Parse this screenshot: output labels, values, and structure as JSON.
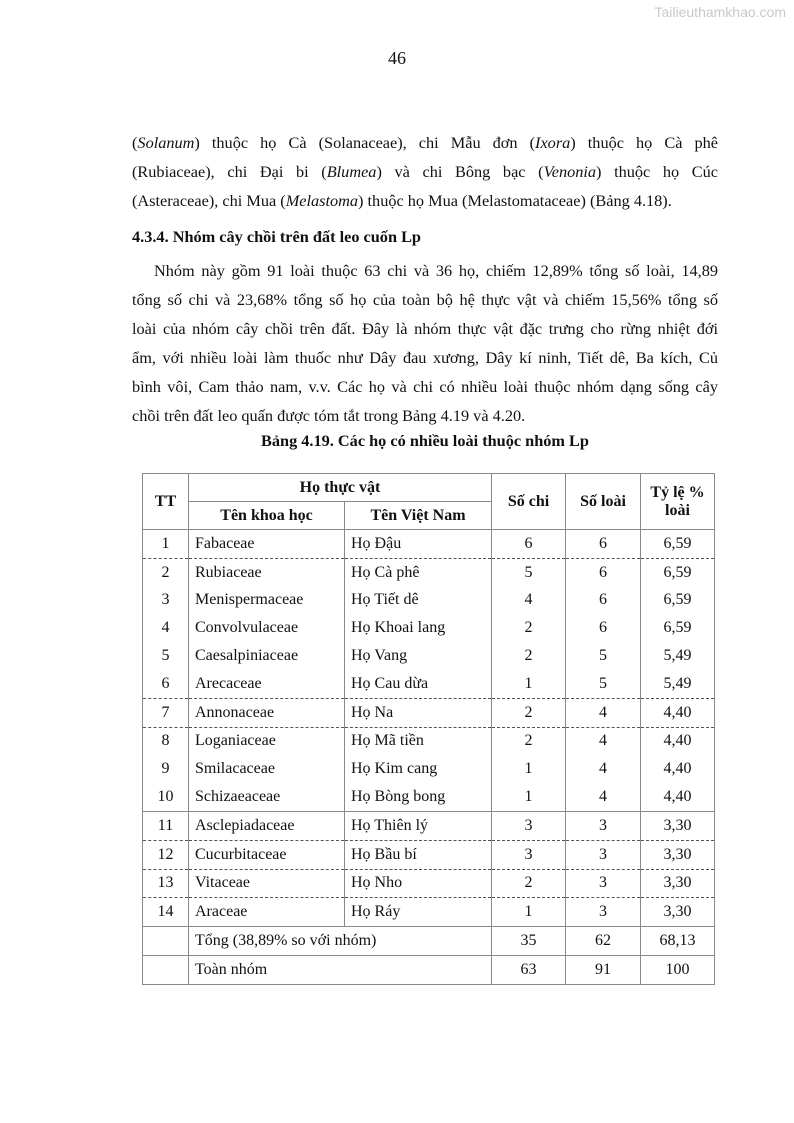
{
  "watermark": "Tailieuthamkhao.com",
  "page_number": "46",
  "intro_lines": [
    [
      "(",
      "Solanum",
      ") thuộc họ Cà (Solanaceae), chi Mẫu đơn (",
      "Ixora",
      ") thuộc họ Cà phê"
    ],
    [
      "(Rubiaceae), chi Đại bi (",
      "Blumea",
      ") và chi Bông bạc (",
      "Venonia",
      ") thuộc họ Cúc"
    ],
    [
      "(Asteraceae), chi Mua (",
      "Melastoma",
      ") thuộc họ Mua (Melastomataceae) (Bảng 4.18).",
      "",
      ""
    ]
  ],
  "section_heading": "4.3.4.  Nhóm cây chồi trên đất leo cuốn  Lp",
  "body_lines": [
    "Nhóm này gồm 91 loài thuộc 63 chi và 36 họ, chiếm 12,89% tổng số loài, 14,89",
    "tổng số chi và 23,68% tổng số họ của toàn bộ hệ thực vật và chiếm 15,56% tổng số",
    "loài của nhóm cây chồi trên đất. Đây là nhóm thực vật đặc trưng cho rừng nhiệt đới",
    "ẩm, với nhiều loài làm thuốc như Dây đau xương, Dây kí ninh, Tiết dê, Ba kích, Củ",
    "bình vôi, Cam thảo nam, v.v. Các họ và chi có nhiều loài thuộc nhóm dạng sống cây",
    "chồi trên đất leo quấn được tóm tắt trong Bảng 4.19 và 4.20."
  ],
  "table": {
    "caption": "Bảng 4.19. Các họ có nhiều loài  thuộc nhóm Lp",
    "headers": {
      "tt": "TT",
      "group": "Họ thực vật",
      "sci": "Tên khoa học",
      "vn": "Tên Việt Nam",
      "chi": "Số chi",
      "loai": "Số loài",
      "ratio": "Tỷ lệ % loài"
    },
    "rows": [
      [
        "1",
        "Fabaceae",
        "Họ Đậu",
        "6",
        "6",
        "6,59"
      ],
      [
        "2",
        "Rubiaceae",
        "Họ Cà phê",
        "5",
        "6",
        "6,59"
      ],
      [
        "3",
        "Menispermaceae",
        "Họ Tiết dê",
        "4",
        "6",
        "6,59"
      ],
      [
        "4",
        "Convolvulaceae",
        "Họ Khoai lang",
        "2",
        "6",
        "6,59"
      ],
      [
        "5",
        "Caesalpiniaceae",
        "Họ Vang",
        "2",
        "5",
        "5,49"
      ],
      [
        "6",
        "Arecaceae",
        "Họ Cau dừa",
        "1",
        "5",
        "5,49"
      ],
      [
        "7",
        "Annonaceae",
        "Họ Na",
        "2",
        "4",
        "4,40"
      ],
      [
        "8",
        "Loganiaceae",
        "Họ Mã tiền",
        "2",
        "4",
        "4,40"
      ],
      [
        "9",
        "Smilacaceae",
        "Họ Kim cang",
        "1",
        "4",
        "4,40"
      ],
      [
        "10",
        "Schizaeaceae",
        "Họ Bòng bong",
        "1",
        "4",
        "4,40"
      ],
      [
        "11",
        "Asclepiadaceae",
        "Họ Thiên lý",
        "3",
        "3",
        "3,30"
      ],
      [
        "12",
        "Cucurbitaceae",
        "Họ Bầu bí",
        "3",
        "3",
        "3,30"
      ],
      [
        "13",
        "Vitaceae",
        "Họ Nho",
        "2",
        "3",
        "3,30"
      ],
      [
        "14",
        "Araceae",
        "Họ Ráy",
        "1",
        "3",
        "3,30"
      ]
    ],
    "summary": [
      {
        "label": "Tổng (38,89% so với nhóm)",
        "chi": "35",
        "loai": "62",
        "ratio": "68,13"
      },
      {
        "label": "Toàn nhóm",
        "chi": "63",
        "loai": "91",
        "ratio": "100"
      }
    ]
  }
}
